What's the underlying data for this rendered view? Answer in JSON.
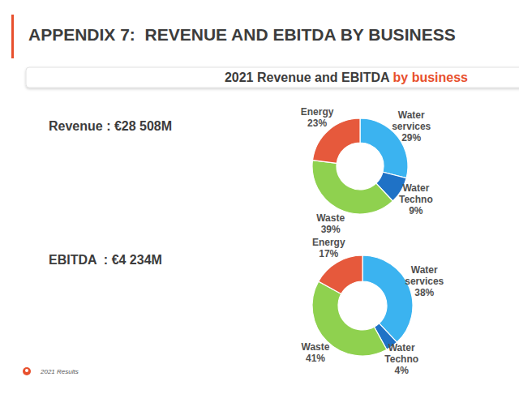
{
  "page": {
    "title": "APPENDIX 7:  REVENUE AND EBITDA BY BUSINESS",
    "subtitle": "2021 Revenue and EBITDA",
    "subtitle_highlight": "by business",
    "footer": "2021 Results"
  },
  "chart_data": [
    {
      "type": "pie",
      "title": "Revenue : €28 508M",
      "categories": [
        "Water services",
        "Water Techno",
        "Waste",
        "Energy"
      ],
      "values": [
        29,
        9,
        39,
        23
      ],
      "value_labels": [
        "29%",
        "9%",
        "39%",
        "23%"
      ],
      "colors": [
        "#3bb3f0",
        "#1f72c6",
        "#8fd14f",
        "#e6593c"
      ],
      "data_labels": true
    },
    {
      "type": "pie",
      "title": "EBITDA  : €4 234M",
      "categories": [
        "Water services",
        "Water Techno",
        "Waste",
        "Energy"
      ],
      "values": [
        38,
        4,
        41,
        17
      ],
      "value_labels": [
        "38%",
        "4%",
        "41%",
        "17%"
      ],
      "colors": [
        "#3bb3f0",
        "#1f72c6",
        "#8fd14f",
        "#e6593c"
      ],
      "data_labels": true
    }
  ]
}
